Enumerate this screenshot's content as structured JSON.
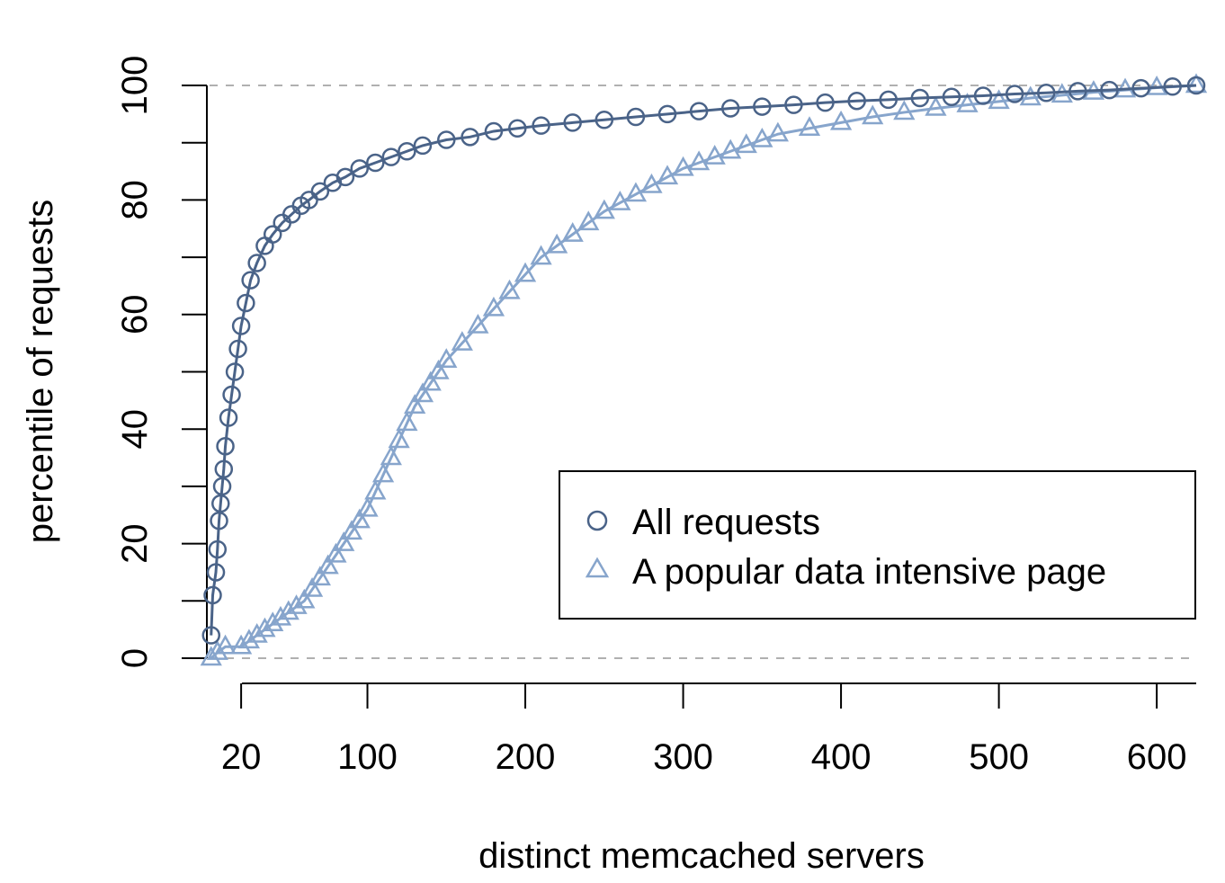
{
  "chart_data": {
    "type": "scatter",
    "title": "",
    "xlabel": "distinct memcached servers",
    "ylabel": "percentile of requests",
    "xlim": [
      0,
      625
    ],
    "ylim": [
      0,
      100
    ],
    "x_ticks": [
      20,
      100,
      200,
      300,
      400,
      500,
      600
    ],
    "y_ticks": [
      0,
      20,
      40,
      60,
      80,
      100
    ],
    "y_minor_ticks": [
      10,
      30,
      50,
      70,
      90
    ],
    "reference_lines": [
      0,
      100
    ],
    "legend_position": "bottom-right",
    "colors": {
      "all_requests": "#4a6388",
      "popular_page": "#87a5cc",
      "reference": "#b0b0b0"
    },
    "series": [
      {
        "name": "All requests",
        "marker": "circle",
        "x": [
          1,
          2,
          4,
          5,
          6,
          7,
          8,
          9,
          10,
          12,
          14,
          16,
          18,
          20,
          23,
          26,
          30,
          35,
          40,
          46,
          52,
          58,
          63,
          70,
          78,
          86,
          95,
          105,
          115,
          125,
          135,
          150,
          165,
          180,
          195,
          210,
          230,
          250,
          270,
          290,
          310,
          330,
          350,
          370,
          390,
          410,
          430,
          450,
          470,
          490,
          510,
          530,
          550,
          570,
          590,
          610,
          625
        ],
        "y": [
          4,
          11,
          15,
          19,
          24,
          27,
          30,
          33,
          37,
          42,
          46,
          50,
          54,
          58,
          62,
          66,
          69,
          72,
          74,
          76,
          77.5,
          79,
          80,
          81.5,
          83,
          84,
          85.5,
          86.5,
          87.5,
          88.5,
          89.5,
          90.5,
          91,
          92,
          92.5,
          93,
          93.5,
          94,
          94.5,
          95,
          95.5,
          96,
          96.3,
          96.6,
          97,
          97.3,
          97.5,
          97.8,
          98,
          98.2,
          98.5,
          98.7,
          99,
          99.2,
          99.5,
          99.8,
          100
        ]
      },
      {
        "name": "A popular data intensive page",
        "marker": "triangle",
        "x": [
          1,
          5,
          10,
          20,
          25,
          30,
          35,
          40,
          45,
          50,
          55,
          60,
          65,
          70,
          75,
          80,
          85,
          90,
          95,
          100,
          105,
          110,
          115,
          120,
          125,
          130,
          135,
          140,
          145,
          150,
          160,
          170,
          180,
          190,
          200,
          210,
          220,
          230,
          240,
          250,
          260,
          270,
          280,
          290,
          300,
          310,
          320,
          330,
          340,
          350,
          360,
          380,
          400,
          420,
          440,
          460,
          480,
          500,
          520,
          540,
          560,
          580,
          600,
          625
        ],
        "y": [
          0,
          1,
          2,
          2,
          3,
          4,
          5,
          6,
          7,
          8,
          9,
          10,
          12,
          14,
          16,
          18,
          20,
          22,
          24,
          26,
          29,
          32,
          35,
          38,
          41,
          44,
          46,
          48,
          50,
          52,
          55,
          58,
          61,
          64,
          67,
          70,
          72,
          74,
          76,
          78,
          79.5,
          81,
          82.5,
          84,
          85.5,
          86.5,
          87.5,
          88.5,
          89.5,
          90.5,
          91.5,
          92.5,
          93.5,
          94.5,
          95.3,
          96,
          96.6,
          97.2,
          97.8,
          98.3,
          98.8,
          99.2,
          99.6,
          100
        ]
      }
    ]
  }
}
